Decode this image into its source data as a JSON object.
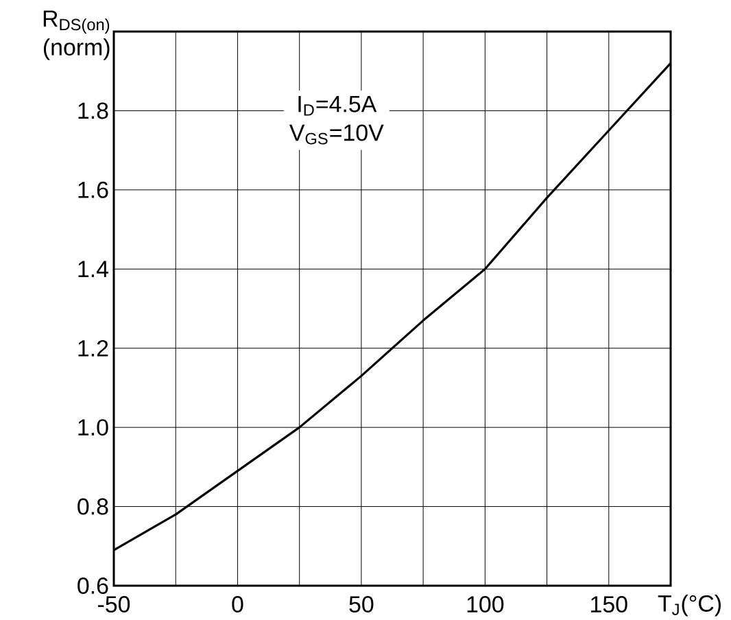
{
  "chart_data": {
    "type": "line",
    "xlabel": "T$_{J}$(°C)",
    "ylabel": "R$_{DS(on)}$ (norm)",
    "annotations": [
      "I$_{D}$=4.5A",
      "V$_{GS}$=10V"
    ],
    "x": [
      -50,
      -25,
      0,
      25,
      50,
      75,
      100,
      125,
      150,
      175
    ],
    "series": [
      {
        "color": "#000000",
        "values": [
          0.69,
          0.78,
          0.89,
          1.0,
          1.13,
          1.27,
          1.4,
          1.58,
          1.75,
          1.92
        ]
      }
    ],
    "xlim": [
      -50,
      175
    ],
    "ylim": [
      0.6,
      2.0
    ],
    "xticks": [
      -50,
      {
        "value": -25,
        "label": null
      },
      0,
      {
        "value": 25,
        "label": null
      },
      50,
      {
        "value": 75,
        "label": null
      },
      100,
      {
        "value": 125,
        "label": null
      },
      150
    ],
    "yticks": [
      0.6,
      0.8,
      {
        "value": 1,
        "label": "1.0"
      },
      1.2,
      1.4,
      1.6,
      1.8
    ],
    "grid": true
  }
}
